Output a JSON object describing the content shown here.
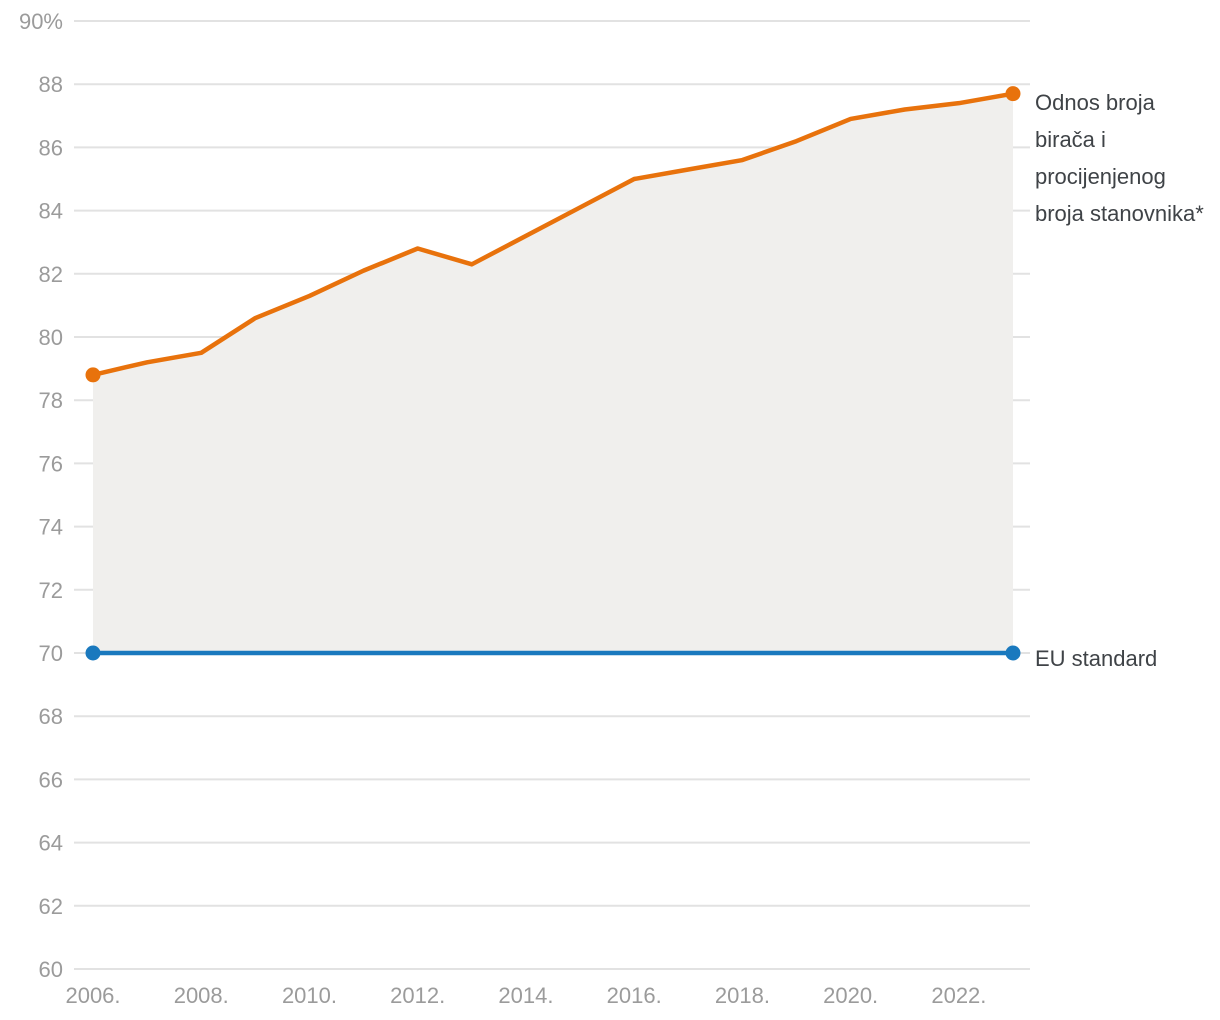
{
  "colors": {
    "orange_series": "#e8720c",
    "blue_series": "#1a79be",
    "area_fill": "#f0efed",
    "gridline": "#e2e2e2",
    "tick_text": "#9b9b9b",
    "annotation_text": "#3f4347"
  },
  "annotations": {
    "series_label": "Odnos broja birača i procijenjenog broja stanovnika*",
    "eu_label": "EU standard"
  },
  "chart_data": {
    "type": "area",
    "title": "",
    "xlabel": "",
    "ylabel": "",
    "ylim": [
      60,
      90
    ],
    "xlim": [
      2006,
      2023
    ],
    "grid": true,
    "legend_position": "right-annotations",
    "x": [
      2006,
      2007,
      2008,
      2009,
      2010,
      2011,
      2012,
      2013,
      2014,
      2015,
      2016,
      2017,
      2018,
      2019,
      2020,
      2021,
      2022,
      2023
    ],
    "x_ticks": [
      {
        "value": 2006,
        "label": "2006."
      },
      {
        "value": 2008,
        "label": "2008."
      },
      {
        "value": 2010,
        "label": "2010."
      },
      {
        "value": 2012,
        "label": "2012."
      },
      {
        "value": 2014,
        "label": "2014."
      },
      {
        "value": 2016,
        "label": "2016."
      },
      {
        "value": 2018,
        "label": "2018."
      },
      {
        "value": 2020,
        "label": "2020."
      },
      {
        "value": 2022,
        "label": "2022."
      }
    ],
    "y_ticks": [
      {
        "value": 90,
        "label": "90%"
      },
      {
        "value": 88,
        "label": "88"
      },
      {
        "value": 86,
        "label": "86"
      },
      {
        "value": 84,
        "label": "84"
      },
      {
        "value": 82,
        "label": "82"
      },
      {
        "value": 80,
        "label": "80"
      },
      {
        "value": 78,
        "label": "78"
      },
      {
        "value": 76,
        "label": "76"
      },
      {
        "value": 74,
        "label": "74"
      },
      {
        "value": 72,
        "label": "72"
      },
      {
        "value": 70,
        "label": "70"
      },
      {
        "value": 68,
        "label": "68"
      },
      {
        "value": 66,
        "label": "66"
      },
      {
        "value": 64,
        "label": "64"
      },
      {
        "value": 62,
        "label": "62"
      },
      {
        "value": 60,
        "label": "60"
      }
    ],
    "series": [
      {
        "name": "Odnos broja birača i procijenjenog broja stanovnika*",
        "color": "#e8720c",
        "values": [
          78.8,
          79.2,
          79.5,
          80.6,
          81.3,
          82.1,
          82.8,
          82.3,
          83.2,
          84.1,
          85.0,
          85.3,
          85.6,
          86.2,
          86.9,
          87.2,
          87.4,
          87.7
        ],
        "area_to_baseline": true,
        "endpoint_dots": true
      },
      {
        "name": "EU standard",
        "color": "#1a79be",
        "constant_value": 70,
        "endpoint_dots": true
      }
    ],
    "baseline": 70
  }
}
